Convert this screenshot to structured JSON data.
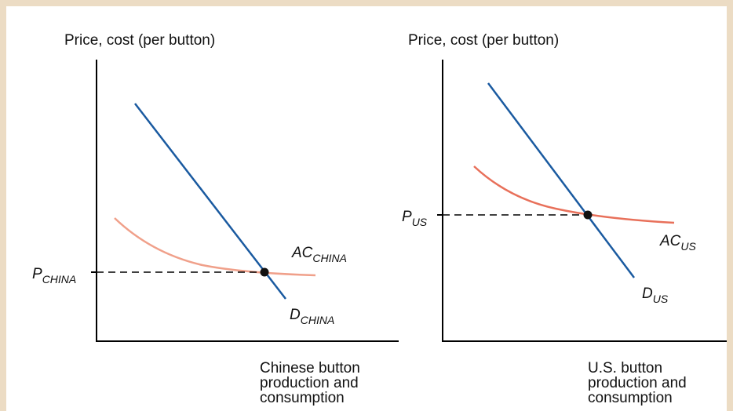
{
  "colors": {
    "background_border": "#ecdcc4",
    "demand_line": "#1a5aa0",
    "ac_curve_china": "#f0a08a",
    "ac_curve_us": "#e8705a",
    "equilibrium_point": "#111111"
  },
  "panels": [
    {
      "id": "china",
      "y_axis_label": "Price, cost (per button)",
      "x_axis_label": [
        "Chinese button",
        "production and",
        "consumption"
      ],
      "price_label": {
        "main": "P",
        "sub": "CHINA"
      },
      "ac_label": {
        "main": "AC",
        "sub": "CHINA"
      },
      "demand_label": {
        "main": "D",
        "sub": "CHINA"
      }
    },
    {
      "id": "us",
      "y_axis_label": "Price, cost (per button)",
      "x_axis_label": [
        "U.S. button",
        "production and",
        "consumption"
      ],
      "price_label": {
        "main": "P",
        "sub": "US"
      },
      "ac_label": {
        "main": "AC",
        "sub": "US"
      },
      "demand_label": {
        "main": "D",
        "sub": "US"
      }
    }
  ]
}
